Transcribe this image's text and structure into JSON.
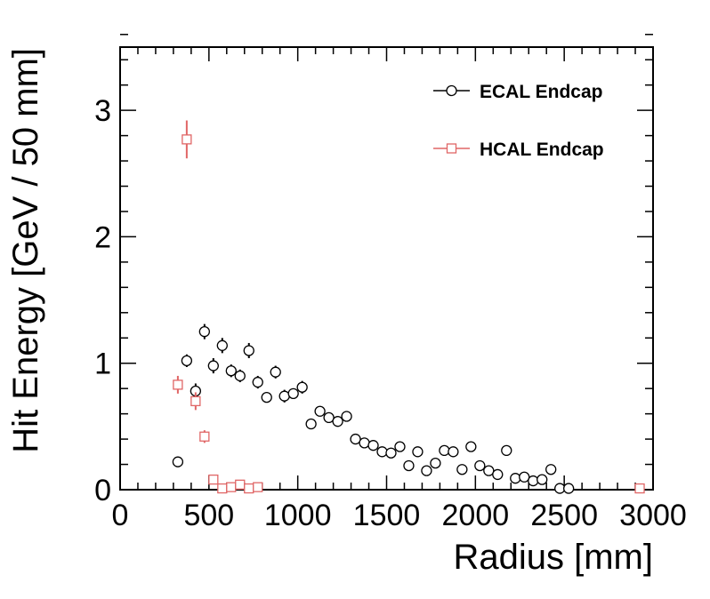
{
  "chart_data": {
    "type": "scatter",
    "xlabel": "Radius [mm]",
    "ylabel": "Hit Energy [GeV / 50 mm]",
    "xlim": [
      0,
      3000
    ],
    "ylim": [
      0,
      3.5
    ],
    "x_ticks": [
      0,
      500,
      1000,
      1500,
      2000,
      2500,
      3000
    ],
    "y_ticks": [
      0,
      1,
      2,
      3
    ],
    "legend_position": "top-right",
    "grid": false,
    "series": [
      {
        "name": "ECAL Endcap",
        "color": "#000000",
        "marker": "open-circle",
        "x": [
          325,
          375,
          425,
          475,
          525,
          575,
          625,
          675,
          725,
          775,
          825,
          875,
          925,
          975,
          1025,
          1075,
          1125,
          1175,
          1225,
          1275,
          1325,
          1375,
          1425,
          1475,
          1525,
          1575,
          1625,
          1675,
          1725,
          1775,
          1825,
          1875,
          1925,
          1975,
          2025,
          2075,
          2125,
          2175,
          2225,
          2275,
          2325,
          2375,
          2425,
          2475,
          2525
        ],
        "y": [
          0.22,
          1.02,
          0.78,
          1.25,
          0.98,
          1.14,
          0.94,
          0.9,
          1.1,
          0.85,
          0.73,
          0.93,
          0.74,
          0.76,
          0.81,
          0.52,
          0.62,
          0.57,
          0.54,
          0.58,
          0.4,
          0.37,
          0.35,
          0.3,
          0.29,
          0.34,
          0.19,
          0.3,
          0.15,
          0.21,
          0.31,
          0.3,
          0.16,
          0.34,
          0.19,
          0.15,
          0.12,
          0.31,
          0.09,
          0.1,
          0.07,
          0.08,
          0.16,
          0.01,
          0.01
        ],
        "yerr": [
          0.02,
          0.05,
          0.06,
          0.06,
          0.06,
          0.06,
          0.05,
          0.05,
          0.06,
          0.05,
          0.04,
          0.05,
          0.05,
          0.04,
          0.05,
          0.03,
          0.04,
          0.03,
          0.03,
          0.04,
          0.02,
          0.02,
          0.02,
          0.02,
          0.02,
          0.02,
          0.02,
          0.02,
          0.02,
          0.02,
          0.02,
          0.02,
          0.02,
          0.02,
          0.02,
          0.02,
          0.02,
          0.02,
          0.02,
          0.02,
          0.02,
          0.02,
          0.02,
          0.01,
          0.01
        ]
      },
      {
        "name": "HCAL Endcap",
        "color": "#e06666",
        "marker": "open-square",
        "x": [
          325,
          375,
          425,
          475,
          525,
          575,
          625,
          675,
          725,
          775,
          2925
        ],
        "y": [
          0.83,
          2.77,
          0.7,
          0.42,
          0.08,
          0.01,
          0.02,
          0.04,
          0.01,
          0.02,
          0.01
        ],
        "yerr": [
          0.07,
          0.15,
          0.07,
          0.05,
          0.03,
          0.01,
          0.01,
          0.02,
          0.01,
          0.01,
          0.01
        ]
      }
    ]
  }
}
